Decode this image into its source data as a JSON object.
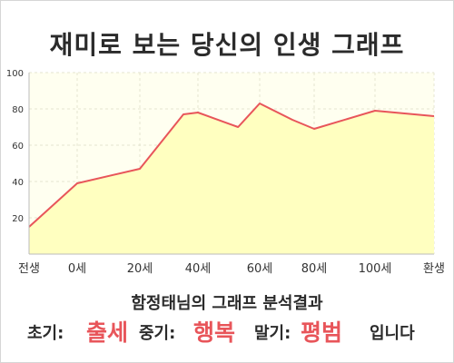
{
  "title": "재미로 보는 당신의 인생 그래프",
  "chart_data": {
    "type": "area",
    "title": "재미로 보는 당신의 인생 그래프",
    "xlabel": "",
    "ylabel": "",
    "ylim": [
      0,
      100
    ],
    "y_ticks": [
      "20",
      "40",
      "60",
      "80",
      "100"
    ],
    "x_ticks": [
      "전생",
      "0세",
      "20세",
      "40세",
      "60세",
      "80세",
      "100세",
      "환생"
    ],
    "grid": true,
    "legend": "none",
    "line_color": "#e8555a",
    "fill_color": "#ffffc0",
    "plot_background": "#fffff0",
    "series": [
      {
        "values": [
          [
            "전생",
            15
          ],
          [
            "0세",
            39
          ],
          [
            "20세",
            47
          ],
          [
            35,
            77
          ],
          [
            "40세",
            78
          ],
          [
            53,
            70
          ],
          [
            "60세",
            83
          ],
          [
            72,
            74
          ],
          [
            "80세",
            69
          ],
          [
            "100세",
            79
          ],
          [
            "환생",
            76
          ]
        ]
      }
    ]
  },
  "result": {
    "heading": "함정태님의 그래프 분석결과",
    "early_label": "초기:",
    "early_value": "출세",
    "middle_label": "중기:",
    "middle_value": "행복",
    "late_label": "말기:",
    "late_value": "평범",
    "ending": "입니다",
    "highlight_color": "#e8555a"
  }
}
